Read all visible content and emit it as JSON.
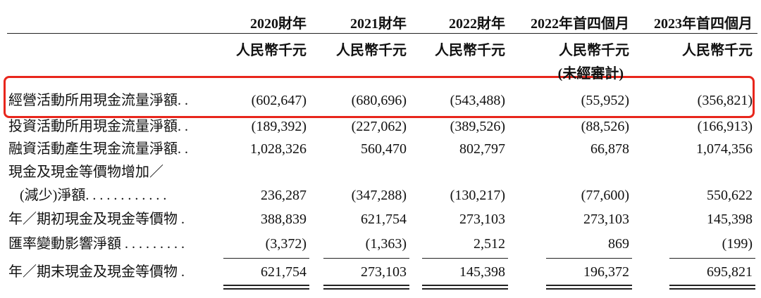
{
  "table": {
    "columns": [
      {
        "period": "2020財年",
        "unit": "人民幣千元"
      },
      {
        "period": "2021財年",
        "unit": "人民幣千元"
      },
      {
        "period": "2022財年",
        "unit": "人民幣千元"
      },
      {
        "period": "2022年首四個月",
        "unit": "人民幣千元",
        "note": "(未經審計)"
      },
      {
        "period": "2023年首四個月",
        "unit": "人民幣千元"
      }
    ],
    "rows": [
      {
        "label": [
          "經營活動所用現金流量淨額. ."
        ],
        "values": [
          "(602,647)",
          "(680,696)",
          "(543,488)",
          "(55,952)",
          "(356,821)"
        ]
      },
      {
        "label": [
          "投資活動所用現金流量淨額. ."
        ],
        "values": [
          "(189,392)",
          "(227,062)",
          "(389,526)",
          "(88,526)",
          "(166,913)"
        ]
      },
      {
        "label": [
          "融資活動產生現金流量淨額. ."
        ],
        "values": [
          "1,028,326",
          "560,470",
          "802,797",
          "66,878",
          "1,074,356"
        ]
      },
      {
        "label": [
          "現金及現金等價物增加／",
          "(減少)淨額. . . . . . . . . . . ."
        ],
        "values": [
          "236,287",
          "(347,288)",
          "(130,217)",
          "(77,600)",
          "550,622"
        ]
      },
      {
        "label": [
          "年／期初現金及現金等價物 ."
        ],
        "values": [
          "388,839",
          "621,754",
          "273,103",
          "273,103",
          "145,398"
        ]
      },
      {
        "label": [
          "匯率變動影響淨額 . . . . . . . . ."
        ],
        "values": [
          "(3,372)",
          "(1,363)",
          "2,512",
          "869",
          "(199)"
        ]
      },
      {
        "label": [
          "年／期末現金及現金等價物 ."
        ],
        "values": [
          "621,754",
          "273,103",
          "145,398",
          "196,372",
          "695,821"
        ]
      }
    ]
  }
}
